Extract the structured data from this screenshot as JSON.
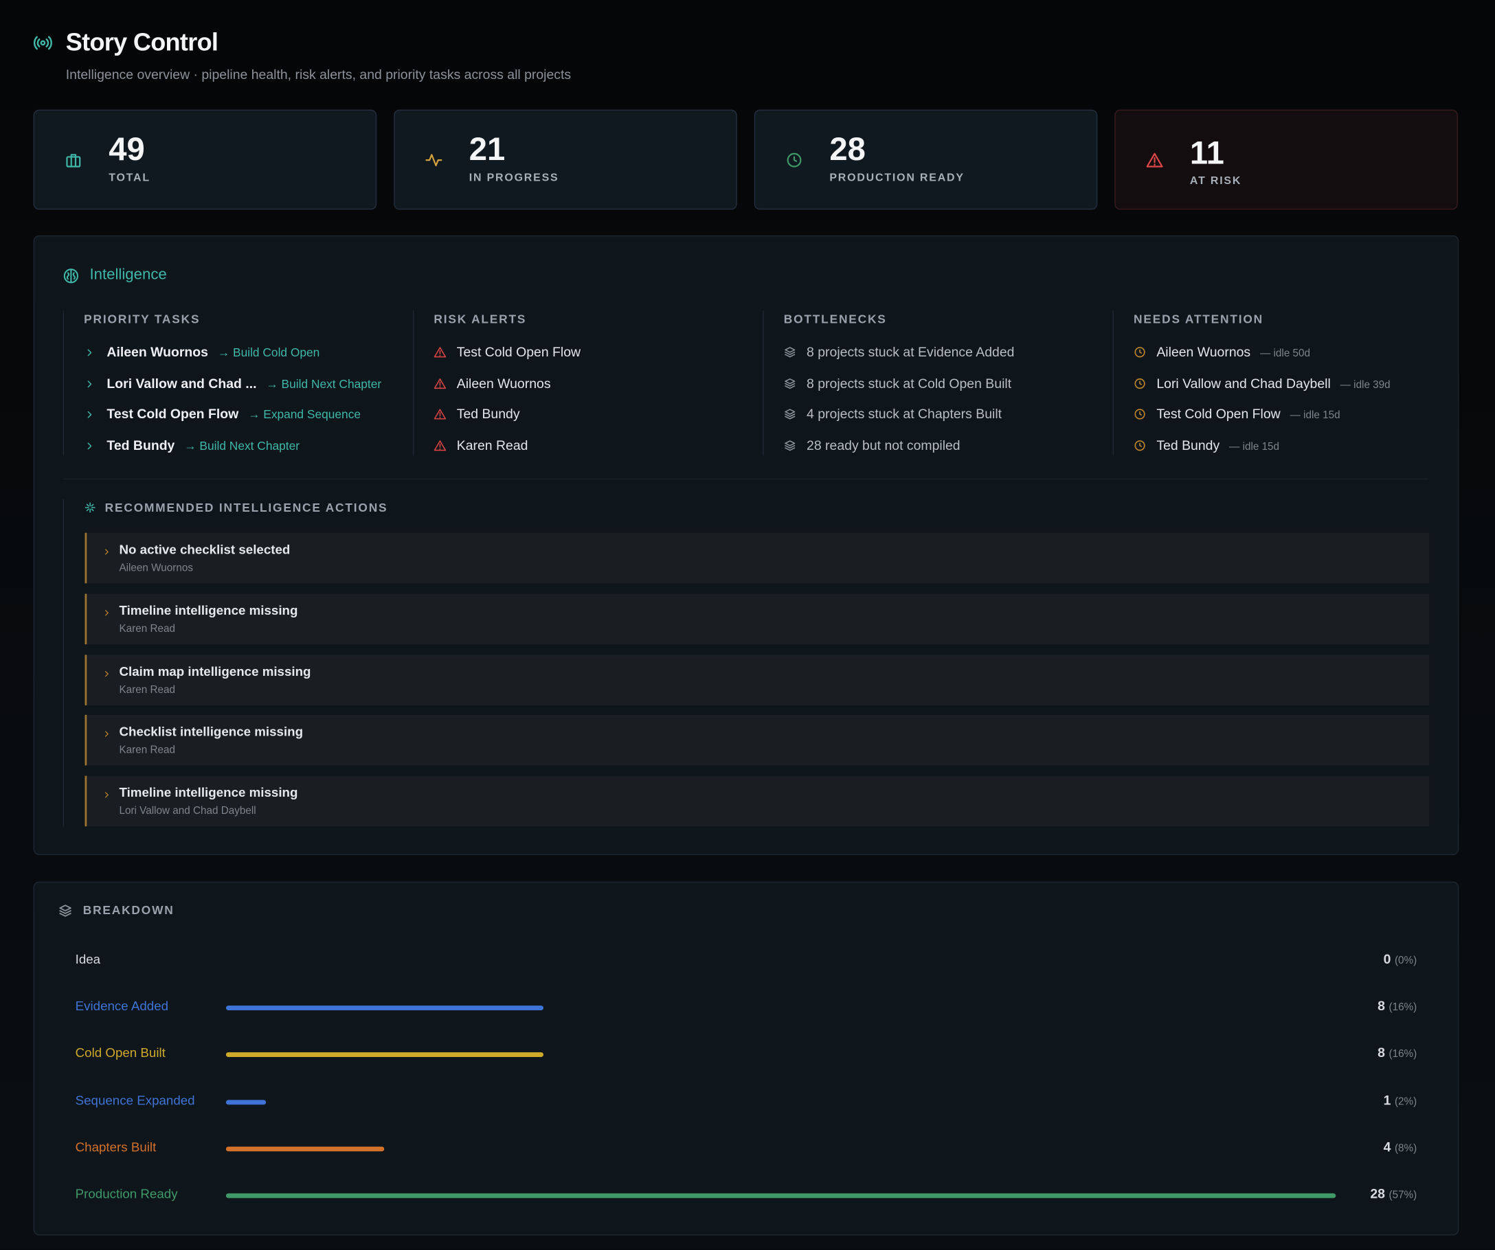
{
  "header": {
    "title": "Story Control",
    "subtitle": "Intelligence overview · pipeline health, risk alerts, and priority tasks across all projects"
  },
  "stats": [
    {
      "value": 49,
      "label": "TOTAL"
    },
    {
      "value": 21,
      "label": "IN PROGRESS"
    },
    {
      "value": 28,
      "label": "PRODUCTION READY"
    },
    {
      "value": 11,
      "label": "AT RISK"
    }
  ],
  "intelligence": {
    "title": "Intelligence",
    "priority_tasks": {
      "heading": "PRIORITY TASKS",
      "items": [
        {
          "name": "Aileen Wuornos",
          "action": "→ Build Cold Open"
        },
        {
          "name": "Lori Vallow and Chad ...",
          "action": "→ Build Next Chapter"
        },
        {
          "name": "Test Cold Open Flow",
          "action": "→ Expand Sequence"
        },
        {
          "name": "Ted Bundy",
          "action": "→ Build Next Chapter"
        }
      ]
    },
    "risk_alerts": {
      "heading": "RISK ALERTS",
      "items": [
        "Test Cold Open Flow",
        "Aileen Wuornos",
        "Ted Bundy",
        "Karen Read"
      ]
    },
    "bottlenecks": {
      "heading": "BOTTLENECKS",
      "items": [
        "8 projects stuck at Evidence Added",
        "8 projects stuck at Cold Open Built",
        "4 projects stuck at Chapters Built",
        "28 ready but not compiled"
      ]
    },
    "needs_attention": {
      "heading": "NEEDS ATTENTION",
      "items": [
        {
          "name": "Aileen Wuornos",
          "idle": "— idle 50d"
        },
        {
          "name": "Lori Vallow and Chad Daybell",
          "idle": "— idle 39d"
        },
        {
          "name": "Test Cold Open Flow",
          "idle": "— idle 15d"
        },
        {
          "name": "Ted Bundy",
          "idle": "— idle 15d"
        }
      ]
    },
    "recommended": {
      "heading": "RECOMMENDED INTELLIGENCE ACTIONS",
      "items": [
        {
          "title": "No active checklist selected",
          "project": "Aileen Wuornos"
        },
        {
          "title": "Timeline intelligence missing",
          "project": "Karen Read"
        },
        {
          "title": "Claim map intelligence missing",
          "project": "Karen Read"
        },
        {
          "title": "Checklist intelligence missing",
          "project": "Karen Read"
        },
        {
          "title": "Timeline intelligence missing",
          "project": "Lori Vallow and Chad Daybell"
        }
      ]
    }
  },
  "breakdown": {
    "heading": "BREAKDOWN",
    "rows": [
      {
        "stage": "Idea",
        "count": 0,
        "percent": "(0%)",
        "color": "#d8dbe0"
      },
      {
        "stage": "Evidence Added",
        "count": 8,
        "percent": "(16%)",
        "color": "#3f74d6"
      },
      {
        "stage": "Cold Open Built",
        "count": 8,
        "percent": "(16%)",
        "color": "#cfa92a"
      },
      {
        "stage": "Sequence Expanded",
        "count": 1,
        "percent": "(2%)",
        "color": "#3f74d6"
      },
      {
        "stage": "Chapters Built",
        "count": 4,
        "percent": "(8%)",
        "color": "#d4722c"
      },
      {
        "stage": "Production Ready",
        "count": 28,
        "percent": "(57%)",
        "color": "#3f9a68"
      }
    ]
  }
}
